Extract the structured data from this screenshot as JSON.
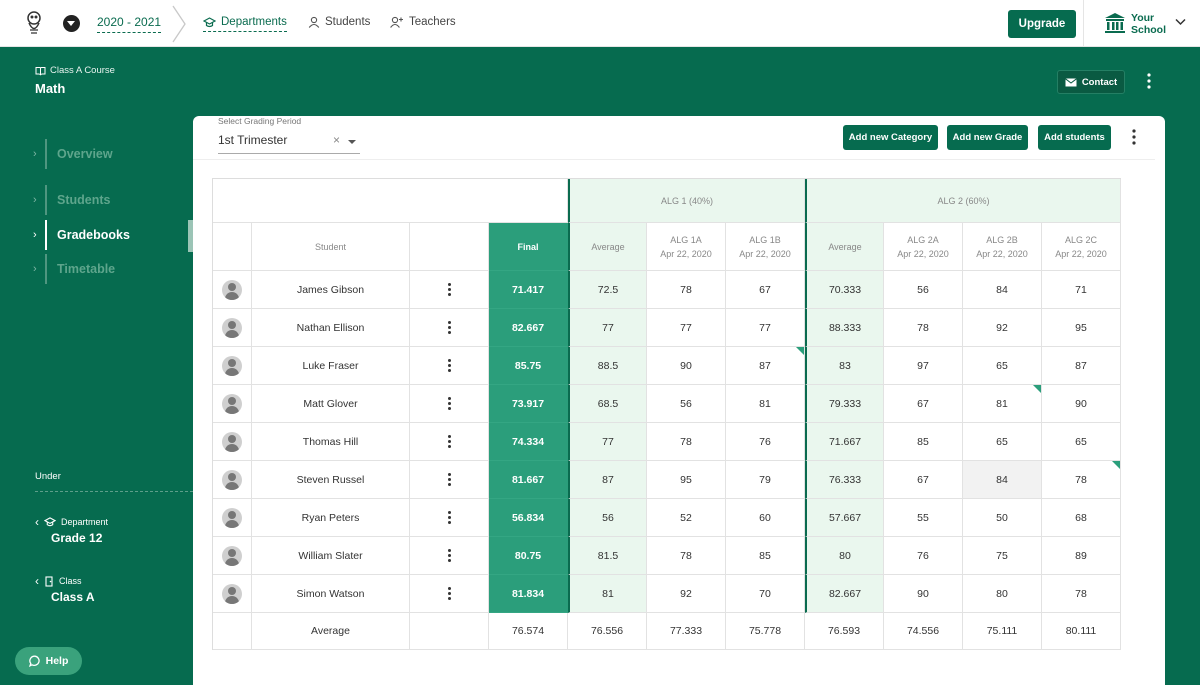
{
  "topbar": {
    "year": "2020 - 2021",
    "nav": [
      {
        "label": "Departments",
        "icon": "graduation-cap-icon",
        "active": true
      },
      {
        "label": "Students",
        "icon": "user-icon"
      },
      {
        "label": "Teachers",
        "icon": "user-plus-icon"
      }
    ],
    "upgrade": "Upgrade",
    "school_line1": "Your",
    "school_line2": "School"
  },
  "sidebar": {
    "course_label": "Class A Course",
    "course_name": "Math",
    "items": [
      {
        "label": "Overview",
        "active": false
      },
      {
        "label": "Students",
        "active": false
      },
      {
        "label": "Gradebooks",
        "active": true
      },
      {
        "label": "Timetable",
        "active": false
      }
    ],
    "under_label": "Under",
    "department_label": "Department",
    "department_value": "Grade 12",
    "class_label": "Class",
    "class_value": "Class A",
    "help": "Help"
  },
  "header_actions": {
    "contact": "Contact"
  },
  "toolbar": {
    "period_label": "Select Grading Period",
    "period_value": "1st Trimester",
    "period_clear": "×",
    "add_category": "Add new Category",
    "add_grade": "Add new Grade",
    "add_students": "Add students"
  },
  "gradebook": {
    "groups": {
      "alg1": "ALG 1 (40%)",
      "alg2": "ALG 2 (60%)"
    },
    "headers": {
      "student": "Student",
      "final": "Final",
      "avg1": "Average",
      "alg1a": "ALG 1A",
      "alg1a_date": "Apr 22, 2020",
      "alg1b": "ALG 1B",
      "alg1b_date": "Apr 22, 2020",
      "avg2": "Average",
      "alg2a": "ALG 2A",
      "alg2a_date": "Apr 22, 2020",
      "alg2b": "ALG 2B",
      "alg2b_date": "Apr 22, 2020",
      "alg2c": "ALG 2C",
      "alg2c_date": "Apr 22, 2020"
    },
    "rows": [
      {
        "name": "James Gibson",
        "final": "71.417",
        "avg1": "72.5",
        "alg1a": "78",
        "alg1b": "67",
        "avg2": "70.333",
        "alg2a": "56",
        "alg2b": "84",
        "alg2c": "71"
      },
      {
        "name": "Nathan Ellison",
        "final": "82.667",
        "avg1": "77",
        "alg1a": "77",
        "alg1b": "77",
        "avg2": "88.333",
        "alg2a": "78",
        "alg2b": "92",
        "alg2c": "95"
      },
      {
        "name": "Luke Fraser",
        "final": "85.75",
        "avg1": "88.5",
        "alg1a": "90",
        "alg1b": "87",
        "avg2": "83",
        "alg2a": "97",
        "alg2b": "65",
        "alg2c": "87"
      },
      {
        "name": "Matt Glover",
        "final": "73.917",
        "avg1": "68.5",
        "alg1a": "56",
        "alg1b": "81",
        "avg2": "79.333",
        "alg2a": "67",
        "alg2b": "81",
        "alg2c": "90"
      },
      {
        "name": "Thomas Hill",
        "final": "74.334",
        "avg1": "77",
        "alg1a": "78",
        "alg1b": "76",
        "avg2": "71.667",
        "alg2a": "85",
        "alg2b": "65",
        "alg2c": "65"
      },
      {
        "name": "Steven Russel",
        "final": "81.667",
        "avg1": "87",
        "alg1a": "95",
        "alg1b": "79",
        "avg2": "76.333",
        "alg2a": "67",
        "alg2b": "84",
        "alg2c": "78"
      },
      {
        "name": "Ryan Peters",
        "final": "56.834",
        "avg1": "56",
        "alg1a": "52",
        "alg1b": "60",
        "avg2": "57.667",
        "alg2a": "55",
        "alg2b": "50",
        "alg2c": "68"
      },
      {
        "name": "William Slater",
        "final": "80.75",
        "avg1": "81.5",
        "alg1a": "78",
        "alg1b": "85",
        "avg2": "80",
        "alg2a": "76",
        "alg2b": "75",
        "alg2c": "89"
      },
      {
        "name": "Simon Watson",
        "final": "81.834",
        "avg1": "81",
        "alg1a": "92",
        "alg1b": "70",
        "avg2": "82.667",
        "alg2a": "90",
        "alg2b": "80",
        "alg2c": "78"
      }
    ],
    "average": {
      "label": "Average",
      "final": "76.574",
      "avg1": "76.556",
      "alg1a": "77.333",
      "alg1b": "75.778",
      "avg2": "76.593",
      "alg2a": "74.556",
      "alg2b": "75.111",
      "alg2c": "80.111"
    }
  },
  "colors": {
    "brand": "#066b4f",
    "final": "#2b9e7b",
    "light": "#eaf7ee"
  }
}
